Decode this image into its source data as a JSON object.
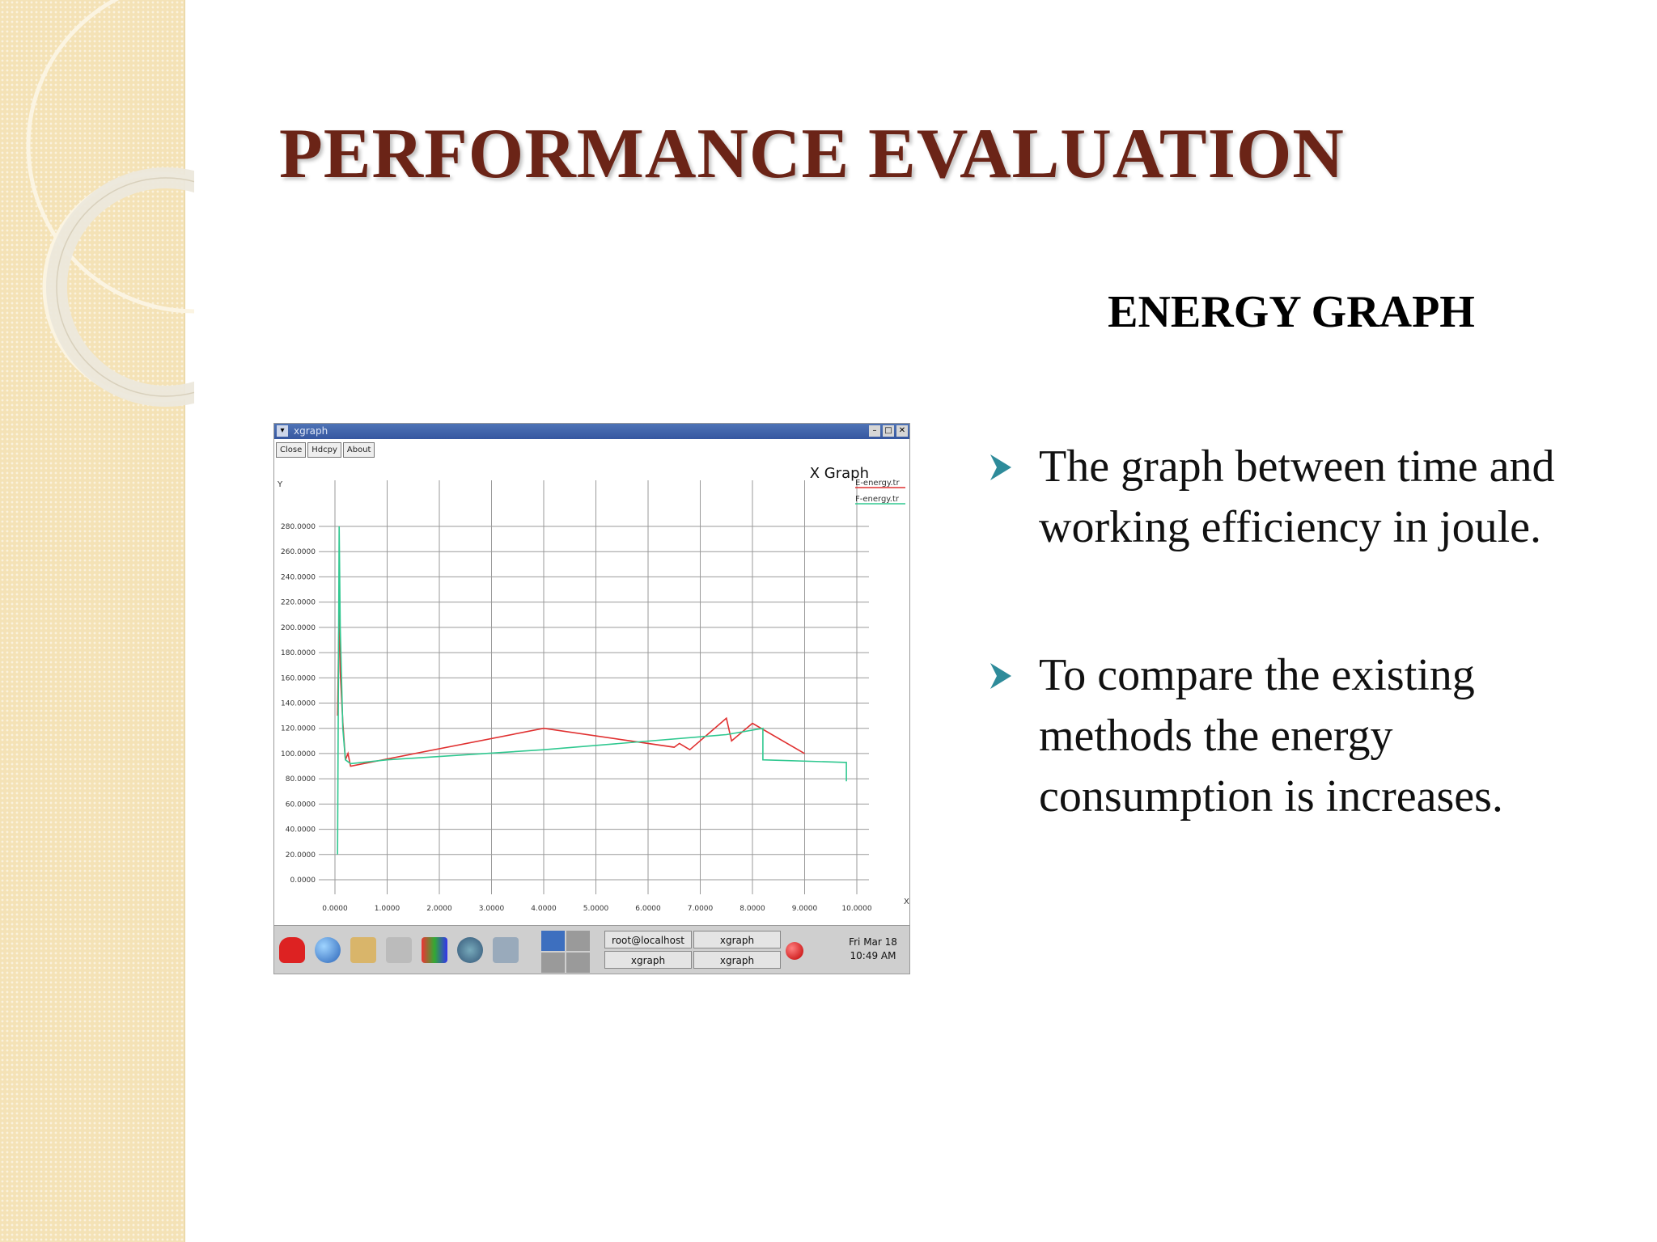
{
  "slide": {
    "title": "PERFORMANCE EVALUATION",
    "subtitle": "ENERGY GRAPH",
    "bullets": [
      "The graph between time and working efficiency in joule.",
      "To compare the existing methods the energy consumption is increases."
    ],
    "colors": {
      "title": "#6b2417",
      "band": "#f4e2b6",
      "bullet_arrow": "#2e8b9a"
    }
  },
  "xgraph": {
    "window_title": "xgraph",
    "buttons": [
      "Close",
      "Hdcpy",
      "About"
    ],
    "taskbar": {
      "tasks": [
        "root@localhost",
        "xgraph",
        "xgraph",
        "xgraph"
      ],
      "clock_day": "Fri Mar 18",
      "clock_time": "10:49 AM"
    }
  },
  "chart_data": {
    "type": "line",
    "title": "X Graph",
    "ylabel": "Y",
    "xlabel": "X",
    "xlim": [
      0,
      10
    ],
    "ylim": [
      0,
      280
    ],
    "x_ticks": [
      "0.0000",
      "1.0000",
      "2.0000",
      "3.0000",
      "4.0000",
      "5.0000",
      "6.0000",
      "7.0000",
      "8.0000",
      "9.0000",
      "10.0000"
    ],
    "y_ticks": [
      "0.0000",
      "20.0000",
      "40.0000",
      "60.0000",
      "80.0000",
      "100.0000",
      "120.0000",
      "140.0000",
      "160.0000",
      "180.0000",
      "200.0000",
      "220.0000",
      "240.0000",
      "260.0000",
      "280.0000"
    ],
    "grid": true,
    "legend_position": "top-right",
    "series": [
      {
        "name": "E-energy.tr",
        "color": "#e03030",
        "x": [
          0.05,
          0.08,
          0.1,
          0.15,
          0.2,
          0.25,
          0.3,
          4.0,
          6.5,
          6.6,
          6.8,
          7.5,
          7.6,
          8.0,
          9.0
        ],
        "y": [
          130,
          215,
          165,
          125,
          95,
          100,
          90,
          120,
          105,
          108,
          103,
          128,
          110,
          124,
          100
        ]
      },
      {
        "name": "F-energy.tr",
        "color": "#30c890",
        "x": [
          0.05,
          0.08,
          0.1,
          0.15,
          0.2,
          0.3,
          1.0,
          4.0,
          7.5,
          8.2,
          8.2,
          9.8,
          9.8
        ],
        "y": [
          20,
          280,
          200,
          120,
          95,
          92,
          95,
          103,
          115,
          120,
          95,
          93,
          78
        ]
      }
    ]
  }
}
